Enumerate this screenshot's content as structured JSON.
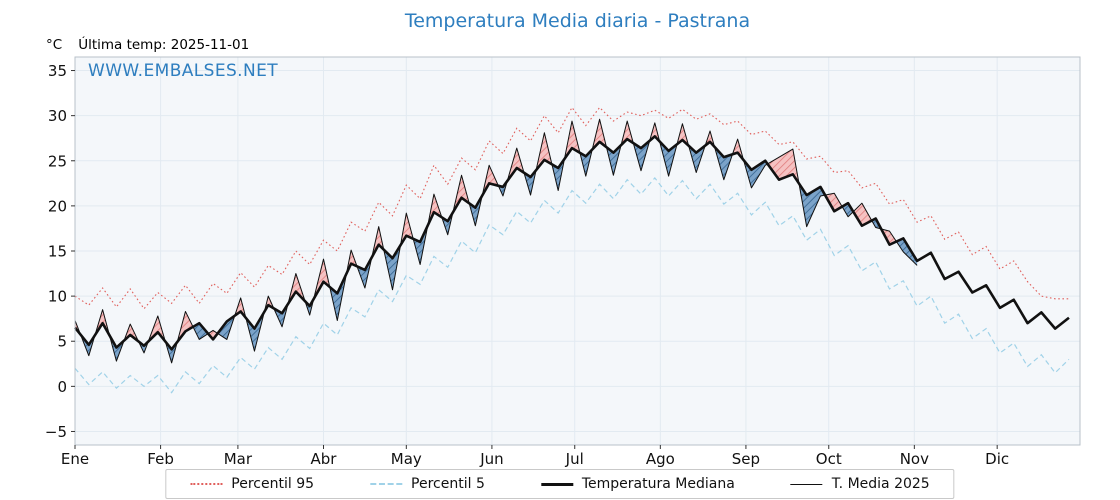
{
  "title": "Temperatura Media diaria - Pastrana",
  "y_unit": "°C",
  "subtitle": "Última temp: 2025-11-01",
  "watermark": "WWW.EMBALSES.NET",
  "colors": {
    "title": "#2e7ebf",
    "watermark": "#2e7ebf",
    "p95_line": "#e0605c",
    "p5_line": "#a0d2e8",
    "median_line": "#111111",
    "t2025_line": "#111111",
    "fill_above_base": "#f5c2c2",
    "fill_above_hatch": "#e07b7b",
    "fill_below_base": "#7ba3c9",
    "fill_below_hatch": "#35638f",
    "plot_bg": "#f4f7fa",
    "grid": "#e2eaf1",
    "frame": "#b8c1c9"
  },
  "legend": {
    "items": [
      {
        "label": "Percentil 95",
        "key": "p95"
      },
      {
        "label": "Percentil 5",
        "key": "p5"
      },
      {
        "label": "Temperatura Mediana",
        "key": "median"
      },
      {
        "label": "T. Media 2025",
        "key": "t2025"
      }
    ]
  },
  "chart_data": {
    "type": "line",
    "title": "Temperatura Media diaria - Pastrana",
    "xlabel": "",
    "ylabel": "°C",
    "ylim": [
      -6.5,
      36.5
    ],
    "y_ticks": [
      -5,
      0,
      5,
      10,
      15,
      20,
      25,
      30,
      35
    ],
    "x_tick_labels": [
      "Ene",
      "Feb",
      "Mar",
      "Abr",
      "May",
      "Jun",
      "Jul",
      "Ago",
      "Sep",
      "Oct",
      "Nov",
      "Dic"
    ],
    "month_start_days": [
      1,
      32,
      60,
      91,
      121,
      152,
      182,
      213,
      244,
      274,
      305,
      335
    ],
    "grid": true,
    "legend_position": "bottom",
    "x_day": [
      1,
      6,
      11,
      16,
      21,
      26,
      31,
      36,
      41,
      46,
      51,
      56,
      61,
      66,
      71,
      76,
      81,
      86,
      91,
      96,
      101,
      106,
      111,
      116,
      121,
      126,
      131,
      136,
      141,
      146,
      151,
      156,
      161,
      166,
      171,
      176,
      181,
      186,
      191,
      196,
      201,
      206,
      211,
      216,
      221,
      226,
      231,
      236,
      241,
      246,
      251,
      256,
      261,
      266,
      271,
      276,
      281,
      286,
      291,
      296,
      301,
      306,
      311,
      316,
      321,
      326,
      331,
      336,
      341,
      346,
      351,
      356,
      361
    ],
    "series": [
      {
        "name": "Percentil 95",
        "key": "p95",
        "values": [
          10.0,
          9.0,
          10.9,
          8.8,
          10.8,
          8.6,
          10.4,
          9.2,
          11.2,
          9.2,
          11.4,
          10.3,
          12.6,
          11.0,
          13.4,
          12.4,
          15.0,
          13.5,
          16.2,
          15.0,
          18.2,
          17.2,
          20.4,
          18.9,
          22.3,
          20.8,
          24.5,
          22.4,
          25.3,
          24.0,
          27.2,
          25.8,
          28.6,
          27.2,
          30.0,
          28.1,
          30.9,
          28.9,
          30.9,
          29.4,
          30.4,
          30.0,
          30.6,
          29.7,
          30.7,
          29.6,
          30.2,
          29.0,
          29.4,
          27.9,
          28.3,
          26.8,
          27.1,
          25.2,
          25.5,
          23.7,
          23.9,
          22.0,
          22.5,
          20.2,
          20.7,
          18.2,
          18.9,
          16.3,
          17.1,
          14.6,
          15.5,
          13.0,
          13.9,
          11.6,
          10.0,
          9.7,
          9.7
        ]
      },
      {
        "name": "Percentil 5",
        "key": "p5",
        "values": [
          2.0,
          0.2,
          1.6,
          -0.2,
          1.2,
          0.0,
          1.2,
          -0.7,
          1.6,
          0.3,
          2.3,
          1.0,
          3.2,
          1.9,
          4.3,
          3.0,
          5.5,
          4.2,
          7.0,
          5.7,
          8.7,
          7.7,
          10.7,
          9.4,
          12.3,
          11.3,
          14.4,
          13.2,
          16.1,
          14.8,
          17.9,
          16.8,
          19.4,
          18.1,
          20.6,
          19.2,
          21.7,
          20.3,
          22.4,
          20.8,
          22.9,
          21.3,
          23.1,
          21.1,
          22.8,
          20.8,
          22.4,
          20.2,
          21.4,
          19.0,
          20.4,
          17.8,
          18.9,
          16.2,
          17.4,
          14.5,
          15.6,
          12.8,
          13.8,
          10.8,
          11.7,
          8.9,
          10.0,
          7.0,
          8.0,
          5.3,
          6.4,
          3.7,
          4.8,
          2.2,
          3.5,
          1.5,
          3.0
        ]
      },
      {
        "name": "Temperatura Mediana",
        "key": "median",
        "values": [
          6.5,
          4.6,
          7.0,
          4.3,
          5.7,
          4.5,
          6.0,
          4.1,
          6.1,
          7.0,
          5.2,
          7.2,
          8.3,
          6.4,
          9.0,
          8.1,
          10.5,
          8.9,
          11.6,
          10.3,
          13.6,
          12.9,
          15.7,
          14.2,
          16.7,
          16.0,
          19.3,
          18.3,
          20.9,
          19.8,
          22.5,
          22.1,
          24.2,
          23.2,
          25.1,
          24.2,
          26.4,
          25.5,
          27.1,
          25.9,
          27.4,
          26.4,
          27.7,
          26.1,
          27.3,
          25.9,
          27.1,
          25.4,
          25.9,
          24.0,
          25.0,
          22.9,
          23.5,
          21.2,
          22.1,
          19.4,
          20.3,
          17.8,
          18.6,
          15.7,
          16.4,
          13.9,
          14.8,
          11.9,
          12.7,
          10.4,
          11.2,
          8.7,
          9.6,
          7.0,
          8.2,
          6.4,
          7.6
        ]
      },
      {
        "name": "T. Media 2025",
        "key": "t2025",
        "values": [
          7.3,
          3.4,
          8.5,
          2.8,
          6.9,
          3.7,
          7.8,
          2.6,
          8.3,
          5.2,
          6.2,
          5.2,
          9.8,
          3.9,
          10.0,
          6.6,
          12.5,
          7.9,
          14.1,
          7.3,
          15.1,
          10.9,
          17.7,
          10.7,
          19.2,
          13.5,
          21.3,
          16.8,
          23.4,
          17.8,
          24.5,
          21.1,
          26.4,
          21.2,
          28.1,
          21.7,
          29.4,
          23.3,
          29.6,
          23.4,
          29.4,
          23.9,
          29.2,
          23.3,
          29.1,
          23.7,
          28.3,
          22.9,
          27.4,
          22.0,
          24.5,
          25.4,
          26.3,
          17.7,
          21.1,
          21.4,
          18.8,
          20.3,
          17.6,
          17.2,
          14.9,
          13.4,
          null,
          null,
          null,
          null,
          null,
          null,
          null,
          null,
          null,
          null,
          null
        ]
      }
    ]
  }
}
